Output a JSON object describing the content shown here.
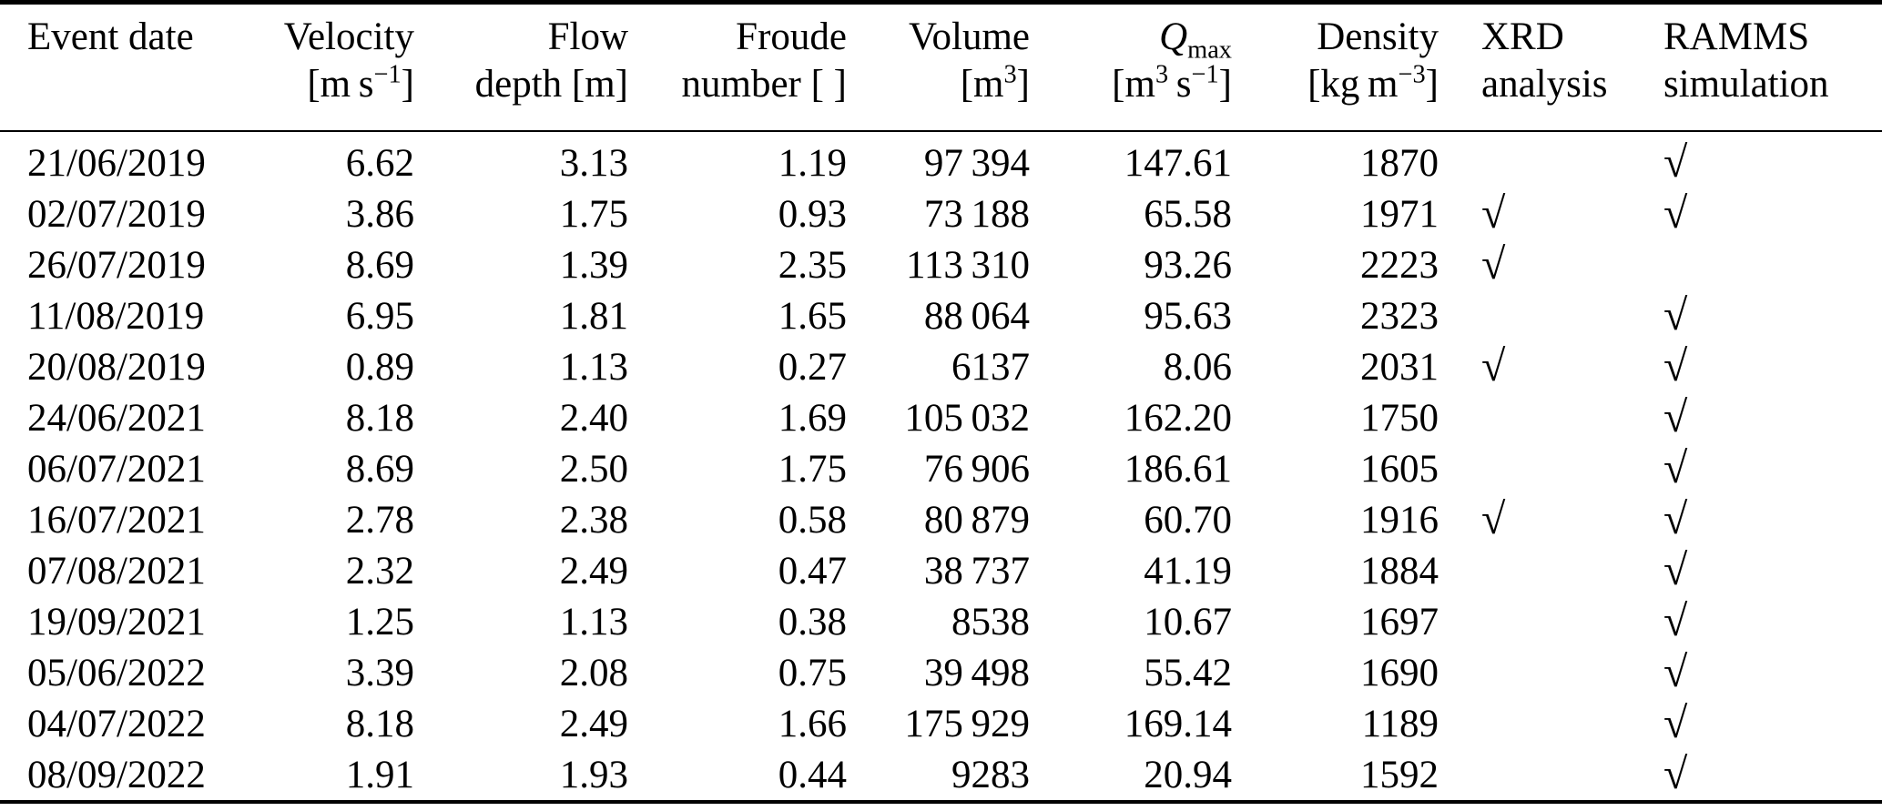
{
  "table": {
    "check_glyph": "√",
    "header": {
      "event_date": {
        "label": "Event date"
      },
      "velocity": {
        "label": "Velocity",
        "unit_pre": "[m s",
        "unit_sup": "−1",
        "unit_post": "]"
      },
      "flow_depth": {
        "label": "Flow",
        "line2": "depth [m]"
      },
      "froude": {
        "label": "Froude",
        "line2": "number [ ]"
      },
      "volume": {
        "label": "Volume",
        "unit_pre": "[m",
        "unit_sup": "3",
        "unit_post": "]"
      },
      "qmax": {
        "symbol": "Q",
        "subscript": "max",
        "unit_pre": "[m",
        "unit_sup1": "3",
        "unit_mid": " s",
        "unit_sup2": "−1",
        "unit_post": "]"
      },
      "density": {
        "label": "Density",
        "unit_pre": "[kg m",
        "unit_sup": "−3",
        "unit_post": "]"
      },
      "xrd": {
        "label": "XRD",
        "line2": "analysis"
      },
      "ramms": {
        "label": "RAMMS",
        "line2": "simulation"
      }
    },
    "rows": [
      {
        "date": "21/06/2019",
        "velocity": "6.62",
        "flow_depth": "3.13",
        "froude": "1.19",
        "volume": "97 394",
        "qmax": "147.61",
        "density": "1870",
        "xrd": false,
        "ramms": true
      },
      {
        "date": "02/07/2019",
        "velocity": "3.86",
        "flow_depth": "1.75",
        "froude": "0.93",
        "volume": "73 188",
        "qmax": "65.58",
        "density": "1971",
        "xrd": true,
        "ramms": true
      },
      {
        "date": "26/07/2019",
        "velocity": "8.69",
        "flow_depth": "1.39",
        "froude": "2.35",
        "volume": "113 310",
        "qmax": "93.26",
        "density": "2223",
        "xrd": true,
        "ramms": false
      },
      {
        "date": "11/08/2019",
        "velocity": "6.95",
        "flow_depth": "1.81",
        "froude": "1.65",
        "volume": "88 064",
        "qmax": "95.63",
        "density": "2323",
        "xrd": false,
        "ramms": true
      },
      {
        "date": "20/08/2019",
        "velocity": "0.89",
        "flow_depth": "1.13",
        "froude": "0.27",
        "volume": "6137",
        "qmax": "8.06",
        "density": "2031",
        "xrd": true,
        "ramms": true
      },
      {
        "date": "24/06/2021",
        "velocity": "8.18",
        "flow_depth": "2.40",
        "froude": "1.69",
        "volume": "105 032",
        "qmax": "162.20",
        "density": "1750",
        "xrd": false,
        "ramms": true
      },
      {
        "date": "06/07/2021",
        "velocity": "8.69",
        "flow_depth": "2.50",
        "froude": "1.75",
        "volume": "76 906",
        "qmax": "186.61",
        "density": "1605",
        "xrd": false,
        "ramms": true
      },
      {
        "date": "16/07/2021",
        "velocity": "2.78",
        "flow_depth": "2.38",
        "froude": "0.58",
        "volume": "80 879",
        "qmax": "60.70",
        "density": "1916",
        "xrd": true,
        "ramms": true
      },
      {
        "date": "07/08/2021",
        "velocity": "2.32",
        "flow_depth": "2.49",
        "froude": "0.47",
        "volume": "38 737",
        "qmax": "41.19",
        "density": "1884",
        "xrd": false,
        "ramms": true
      },
      {
        "date": "19/09/2021",
        "velocity": "1.25",
        "flow_depth": "1.13",
        "froude": "0.38",
        "volume": "8538",
        "qmax": "10.67",
        "density": "1697",
        "xrd": false,
        "ramms": true
      },
      {
        "date": "05/06/2022",
        "velocity": "3.39",
        "flow_depth": "2.08",
        "froude": "0.75",
        "volume": "39 498",
        "qmax": "55.42",
        "density": "1690",
        "xrd": false,
        "ramms": true
      },
      {
        "date": "04/07/2022",
        "velocity": "8.18",
        "flow_depth": "2.49",
        "froude": "1.66",
        "volume": "175 929",
        "qmax": "169.14",
        "density": "1189",
        "xrd": false,
        "ramms": true
      },
      {
        "date": "08/09/2022",
        "velocity": "1.91",
        "flow_depth": "1.93",
        "froude": "0.44",
        "volume": "9283",
        "qmax": "20.94",
        "density": "1592",
        "xrd": false,
        "ramms": true
      }
    ]
  }
}
